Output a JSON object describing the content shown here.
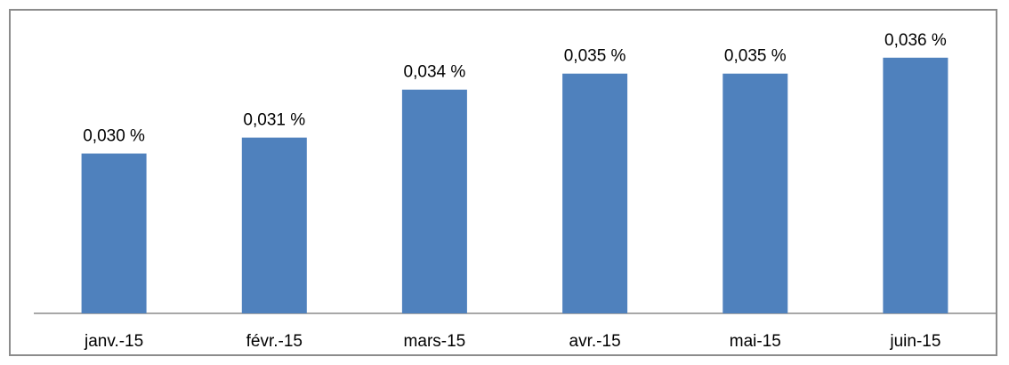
{
  "chart_data": {
    "type": "bar",
    "categories": [
      "janv.-15",
      "févr.-15",
      "mars-15",
      "avr.-15",
      "mai-15",
      "juin-15"
    ],
    "values": [
      0.03,
      0.031,
      0.034,
      0.035,
      0.035,
      0.036
    ],
    "data_labels": [
      "0,030 %",
      "0,031 %",
      "0,034 %",
      "0,035 %",
      "0,035 %",
      "0,036 %"
    ],
    "title": "",
    "xlabel": "",
    "ylabel": "",
    "ylim": [
      0.02,
      0.04
    ],
    "grid": false,
    "legend": "none",
    "bar_color": "#4f81bd",
    "axis_color": "#8c8c8c"
  }
}
